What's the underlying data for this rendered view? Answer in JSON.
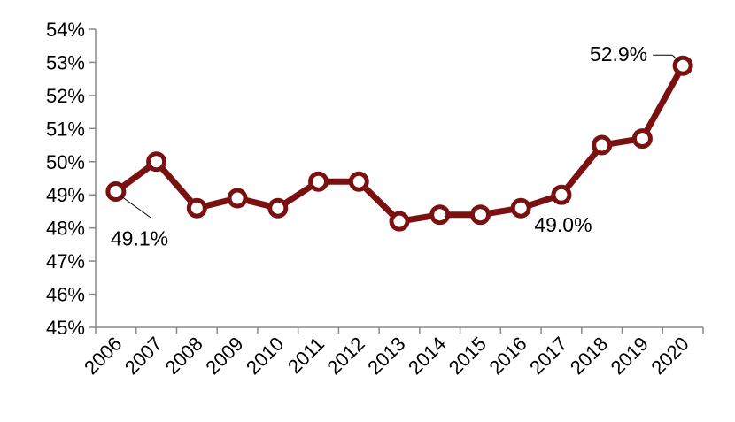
{
  "chart_data": {
    "type": "line",
    "title": "",
    "xlabel": "",
    "ylabel": "",
    "categories": [
      "2006",
      "2007",
      "2008",
      "2009",
      "2010",
      "2011",
      "2012",
      "2013",
      "2014",
      "2015",
      "2016",
      "2017",
      "2018",
      "2019",
      "2020"
    ],
    "series": [
      {
        "values": [
          49.1,
          50.0,
          48.6,
          48.9,
          48.6,
          49.4,
          49.4,
          48.2,
          48.4,
          48.4,
          48.6,
          49.0,
          50.5,
          50.7,
          52.9
        ]
      }
    ],
    "ylim": [
      45,
      54
    ],
    "y_ticks": [
      "45%",
      "46%",
      "47%",
      "48%",
      "49%",
      "50%",
      "51%",
      "52%",
      "53%",
      "54%"
    ],
    "grid": false,
    "legend": "none",
    "line_color": "#7a1010",
    "marker_fill": "#ffffff",
    "annotations": [
      {
        "index": 0,
        "text": "49.1%"
      },
      {
        "index": 11,
        "text": "49.0%"
      },
      {
        "index": 14,
        "text": "52.9%"
      }
    ]
  }
}
